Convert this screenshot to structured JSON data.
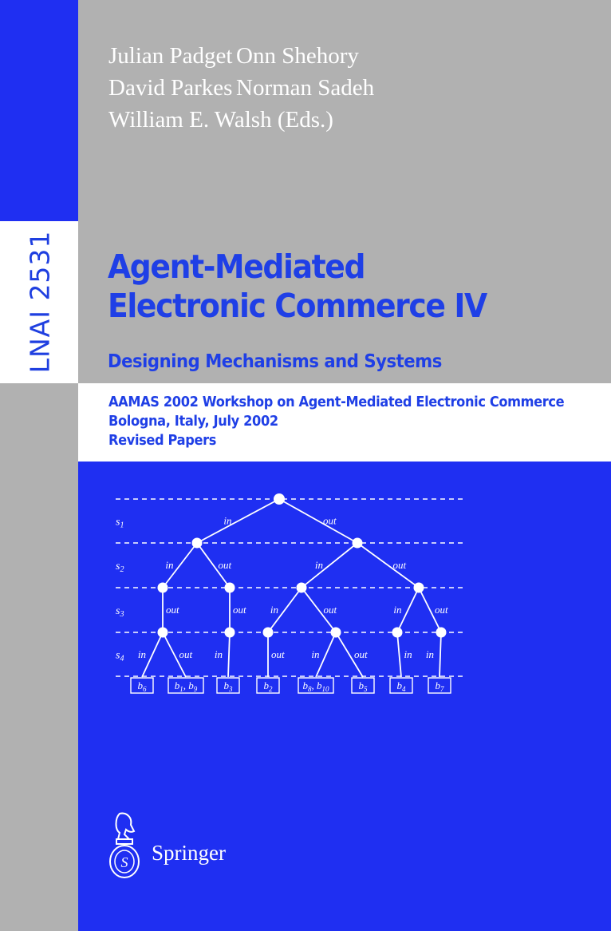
{
  "colors": {
    "blue": "#1f2ff2",
    "gray": "#b1b1b1",
    "title_blue": "#1f3fe6",
    "white": "#ffffff"
  },
  "editors": {
    "rows": [
      [
        "Julian Padget",
        "Onn Shehory"
      ],
      [
        "David Parkes",
        "Norman Sadeh"
      ],
      [
        "William E. Walsh (Eds.)"
      ]
    ]
  },
  "series": "LNAI 2531",
  "title": {
    "line1": "Agent-Mediated",
    "line2": "Electronic Commerce IV",
    "subtitle": "Designing Mechanisms and Systems"
  },
  "workshop": {
    "line1": "AAMAS 2002 Workshop on Agent-Mediated Electronic Commerce",
    "line2": "Bologna, Italy, July 2002",
    "line3": "Revised Papers"
  },
  "diagram": {
    "levels": [
      "s1",
      "s2",
      "s3",
      "s4"
    ],
    "edges": [
      {
        "from": "r",
        "to": "a",
        "label": "in"
      },
      {
        "from": "r",
        "to": "b",
        "label": "out"
      },
      {
        "from": "a",
        "to": "a1",
        "label": "in"
      },
      {
        "from": "a",
        "to": "a2",
        "label": "out"
      },
      {
        "from": "b",
        "to": "b1",
        "label": "in"
      },
      {
        "from": "b",
        "to": "b2",
        "label": "out"
      },
      {
        "from": "a1",
        "to": "c1",
        "label": "out"
      },
      {
        "from": "a2",
        "to": "c2",
        "label": "out"
      },
      {
        "from": "b1",
        "to": "c3",
        "label": "in"
      },
      {
        "from": "b1",
        "to": "c4",
        "label": "out"
      },
      {
        "from": "b2",
        "to": "c5",
        "label": "in"
      },
      {
        "from": "b2",
        "to": "c6",
        "label": "out"
      },
      {
        "from": "c1",
        "to": "L1",
        "label": "in"
      },
      {
        "from": "c1",
        "to": "L2",
        "label": "out"
      },
      {
        "from": "c2",
        "to": "L3",
        "label": "in"
      },
      {
        "from": "c3",
        "to": "L4",
        "label": "out"
      },
      {
        "from": "c4",
        "to": "L5",
        "label": "in"
      },
      {
        "from": "c4",
        "to": "L6",
        "label": "out"
      },
      {
        "from": "c5",
        "to": "L7",
        "label": "in"
      },
      {
        "from": "c6",
        "to": "L8",
        "label": "in"
      }
    ],
    "leaves": [
      {
        "id": "L1",
        "label": [
          [
            "b",
            "6"
          ]
        ]
      },
      {
        "id": "L2",
        "label": [
          [
            "b",
            "1"
          ],
          [
            "b",
            "9"
          ]
        ]
      },
      {
        "id": "L3",
        "label": [
          [
            "b",
            "3"
          ]
        ]
      },
      {
        "id": "L4",
        "label": [
          [
            "b",
            "2"
          ]
        ]
      },
      {
        "id": "L5",
        "label": [
          [
            "b",
            "8"
          ],
          [
            "b",
            "10"
          ]
        ]
      },
      {
        "id": "L6",
        "label": [
          [
            "b",
            "5"
          ]
        ]
      },
      {
        "id": "L7",
        "label": [
          [
            "b",
            "4"
          ]
        ]
      },
      {
        "id": "L8",
        "label": [
          [
            "b",
            "7"
          ]
        ]
      }
    ]
  },
  "publisher": {
    "name": "Springer",
    "logo": "springer-knight-logo"
  }
}
